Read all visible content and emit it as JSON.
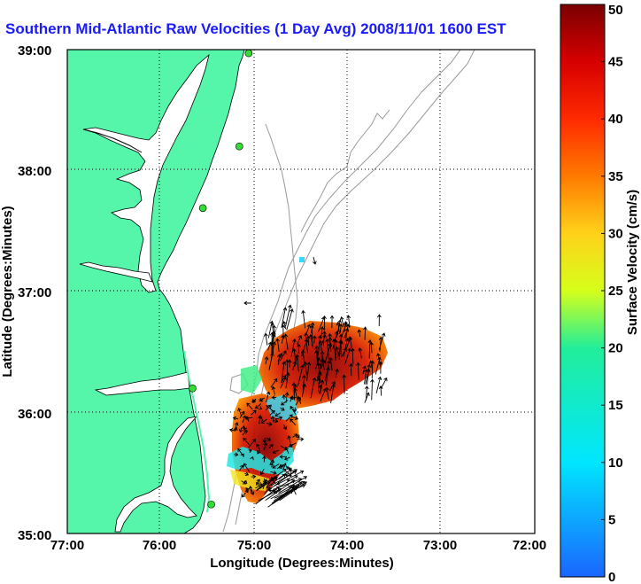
{
  "title": "Southern Mid-Atlantic Raw Velocities (1 Day Avg) 2008/11/01 1600 EST",
  "map": {
    "xlabel": "Longitude (Degrees:Minutes)",
    "ylabel": "Latitude (Degrees:Minutes)",
    "x_ticks": [
      "77:00",
      "76:00",
      "75:00",
      "74:00",
      "73:00",
      "72:00"
    ],
    "y_ticks": [
      "39:00",
      "38:00",
      "37:00",
      "36:00",
      "35:00"
    ],
    "lon_range": [
      -77,
      -72
    ],
    "lat_range": [
      35,
      39
    ],
    "grid": "dotted",
    "colors": {
      "land": "#55f5aa",
      "contour": "#9a9a9a",
      "title": "#1a1aff",
      "station": "#33dd33",
      "arrow": "#000000"
    }
  },
  "colorbar": {
    "label": "Surface Velocity (cm/s)",
    "ticks": [
      "0",
      "5",
      "10",
      "15",
      "20",
      "25",
      "30",
      "35",
      "40",
      "45",
      "50"
    ],
    "range": [
      0,
      50
    ],
    "colormap": "jet-like (blue-cyan-yellow-red-dark red)"
  },
  "stations": [
    {
      "lon": -75.06,
      "lat": 38.97
    },
    {
      "lon": -75.16,
      "lat": 38.2
    },
    {
      "lon": -75.55,
      "lat": 37.69
    },
    {
      "lon": -75.66,
      "lat": 36.2
    },
    {
      "lon": -75.46,
      "lat": 35.24
    }
  ]
}
